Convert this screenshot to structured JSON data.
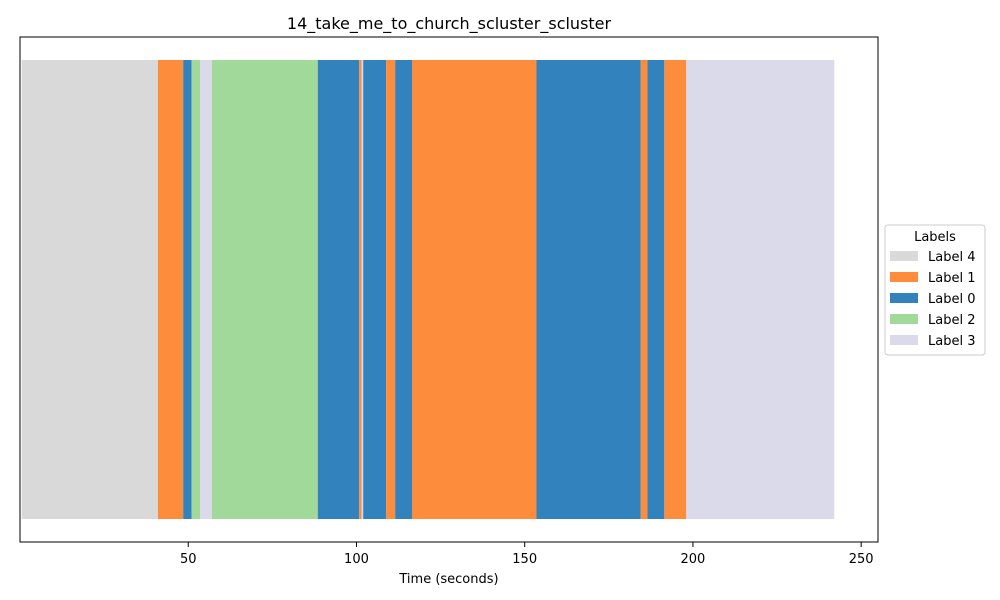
{
  "chart_data": {
    "type": "bar",
    "orientation": "horizontal-timeline",
    "title": "14_take_me_to_church_scluster_scluster",
    "xlabel": "Time (seconds)",
    "ylabel": "",
    "xlim": [
      0,
      255
    ],
    "x_ticks": [
      50,
      100,
      150,
      200,
      250
    ],
    "grid": false,
    "legend": {
      "title": "Labels",
      "placement": "center-right-outside",
      "entries": [
        {
          "name": "Label 4",
          "color": "#d9d9d9"
        },
        {
          "name": "Label 1",
          "color": "#fd8d3c"
        },
        {
          "name": "Label 0",
          "color": "#3182bd"
        },
        {
          "name": "Label 2",
          "color": "#a1d99b"
        },
        {
          "name": "Label 3",
          "color": "#dadaeb"
        }
      ]
    },
    "segments": [
      {
        "start": 0.5,
        "end": 41.0,
        "label": "Label 4"
      },
      {
        "start": 41.0,
        "end": 48.5,
        "label": "Label 1"
      },
      {
        "start": 48.5,
        "end": 51.0,
        "label": "Label 0"
      },
      {
        "start": 51.0,
        "end": 53.5,
        "label": "Label 2"
      },
      {
        "start": 53.5,
        "end": 57.0,
        "label": "Label 3"
      },
      {
        "start": 57.0,
        "end": 88.5,
        "label": "Label 2"
      },
      {
        "start": 88.5,
        "end": 100.8,
        "label": "Label 0"
      },
      {
        "start": 100.8,
        "end": 101.5,
        "label": "Label 1"
      },
      {
        "start": 101.5,
        "end": 102.0,
        "label": "Label 3"
      },
      {
        "start": 102.0,
        "end": 108.8,
        "label": "Label 0"
      },
      {
        "start": 108.8,
        "end": 111.5,
        "label": "Label 1"
      },
      {
        "start": 111.5,
        "end": 116.5,
        "label": "Label 0"
      },
      {
        "start": 116.5,
        "end": 153.5,
        "label": "Label 1"
      },
      {
        "start": 153.5,
        "end": 184.5,
        "label": "Label 0"
      },
      {
        "start": 184.5,
        "end": 186.5,
        "label": "Label 1"
      },
      {
        "start": 186.5,
        "end": 191.5,
        "label": "Label 0"
      },
      {
        "start": 191.5,
        "end": 198.0,
        "label": "Label 1"
      },
      {
        "start": 198.0,
        "end": 242.0,
        "label": "Label 3"
      }
    ]
  }
}
